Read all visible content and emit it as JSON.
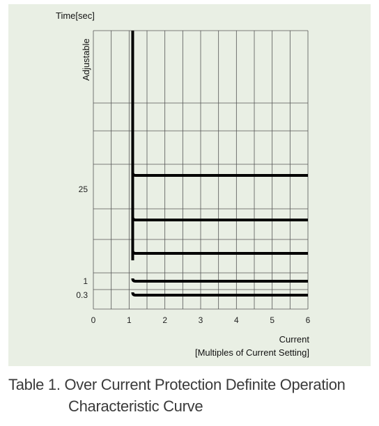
{
  "chart_data": {
    "type": "line",
    "title": "",
    "ylabel": "Time[sec]",
    "ylabel_side": "Adjustable",
    "xlabel": "Current",
    "xlabel_sub": "[Multiples of Current Setting]",
    "xlim": [
      0,
      6
    ],
    "x_ticks": [
      "0",
      "1",
      "2",
      "3",
      "4",
      "5",
      "6"
    ],
    "y_tick_labels": [
      "25",
      "1",
      "0.3"
    ],
    "grid": true,
    "vertical_pickup_x": 1.1,
    "curve_levels": [
      {
        "name": "",
        "y_display": 0.72
      },
      {
        "name": "",
        "y_display": 0.57
      },
      {
        "name": "",
        "y_display": 0.38
      },
      {
        "name": "",
        "y_display": 0.25
      },
      {
        "name": "",
        "y_display": 0.22
      }
    ]
  },
  "caption": {
    "line1": "Table 1. Over Current Protection Definite Operation",
    "line2": "Characteristic Curve"
  }
}
